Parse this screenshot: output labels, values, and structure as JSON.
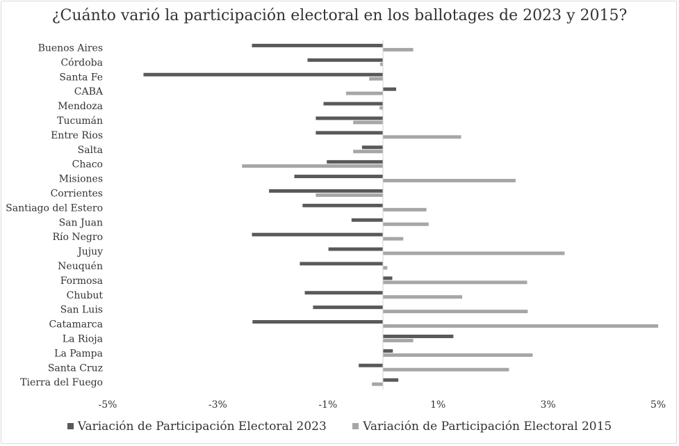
{
  "chart_data": {
    "type": "bar",
    "orientation": "horizontal",
    "title": "¿Cuánto varió la participación electoral en los ballotages de 2023 y 2015?",
    "categories": [
      "Buenos Aires",
      "Córdoba",
      "Santa Fe",
      "CABA",
      "Mendoza",
      "Tucumán",
      "Entre Rios",
      "Salta",
      "Chaco",
      "Misiones",
      "Corrientes",
      "Santiago del Estero",
      "San Juan",
      "Río Negro",
      "Jujuy",
      "Neuquén",
      "Formosa",
      "Chubut",
      "San Luis",
      "Catamarca",
      "La Rioja",
      "La Pampa",
      "Santa Cruz",
      "Tierra del Fuego"
    ],
    "series": [
      {
        "name": "Variación de Participación Electoral 2023",
        "color": "#595959",
        "values": [
          -2.38,
          -1.37,
          -4.35,
          0.24,
          -1.08,
          -1.22,
          -1.22,
          -0.38,
          -1.02,
          -1.61,
          -2.07,
          -1.46,
          -0.57,
          -2.38,
          -0.99,
          -1.51,
          0.17,
          -1.42,
          -1.27,
          -2.37,
          1.28,
          0.18,
          -0.44,
          0.28
        ]
      },
      {
        "name": "Variación de Participación Electoral 2015",
        "color": "#a6a6a6",
        "values": [
          0.55,
          -0.05,
          -0.25,
          -0.67,
          -0.06,
          -0.54,
          1.42,
          -0.54,
          -2.56,
          2.41,
          -1.22,
          0.79,
          0.83,
          0.37,
          3.3,
          0.08,
          2.62,
          1.44,
          2.63,
          5.0,
          0.55,
          2.72,
          2.29,
          -0.2
        ]
      }
    ],
    "xlim": [
      -5,
      5
    ],
    "xticks": [
      -5,
      -3,
      -1,
      1,
      3,
      5
    ],
    "xtick_labels": [
      "-5%",
      "-3%",
      "-1%",
      "1%",
      "3%",
      "5%"
    ],
    "legend_position": "bottom"
  }
}
